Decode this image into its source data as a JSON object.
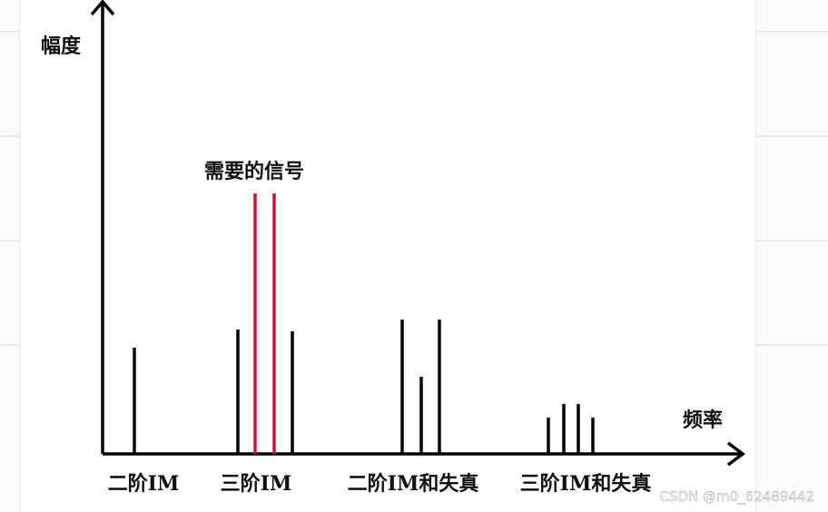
{
  "axes": {
    "y_label": "幅度",
    "x_label": "频率"
  },
  "annotation": "需要的信号",
  "groups": [
    "二阶IM",
    "三阶IM",
    "二阶IM和失真",
    "三阶IM和失真"
  ],
  "watermark": "CSDN @m0_62489442"
}
